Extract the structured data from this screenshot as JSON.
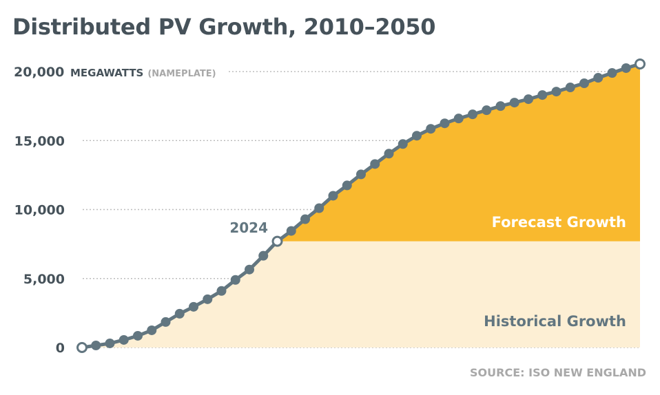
{
  "chart_data": {
    "type": "area",
    "title": "Distributed PV Growth, 2010–2050",
    "ylabel": "MEGAWATTS",
    "ylabel_note": "(NAMEPLATE)",
    "ylim": [
      0,
      20000
    ],
    "xlim": [
      2010,
      2050
    ],
    "yticks": [
      "0",
      "5,000",
      "10,000",
      "15,000",
      "20,000"
    ],
    "ytick_values": [
      0,
      5000,
      10000,
      15000,
      20000
    ],
    "grid": true,
    "annotation": "2024",
    "split_year": 2024,
    "regions": [
      {
        "label": "Historical Growth",
        "color": "#fdefd4"
      },
      {
        "label": "Forecast Growth",
        "color": "#f9b92e"
      }
    ],
    "line_color": "#627680",
    "x": [
      2010,
      2011,
      2012,
      2013,
      2014,
      2015,
      2016,
      2017,
      2018,
      2019,
      2020,
      2021,
      2022,
      2023,
      2024,
      2025,
      2026,
      2027,
      2028,
      2029,
      2030,
      2031,
      2032,
      2033,
      2034,
      2035,
      2036,
      2037,
      2038,
      2039,
      2040,
      2041,
      2042,
      2043,
      2044,
      2045,
      2046,
      2047,
      2048,
      2049,
      2050
    ],
    "values": [
      0,
      150,
      300,
      550,
      850,
      1250,
      1850,
      2450,
      2950,
      3500,
      4100,
      4900,
      5650,
      6650,
      7700,
      8450,
      9300,
      10100,
      11000,
      11750,
      12550,
      13300,
      14050,
      14750,
      15350,
      15850,
      16250,
      16600,
      16900,
      17200,
      17500,
      17750,
      18000,
      18300,
      18550,
      18850,
      19150,
      19550,
      19900,
      20250,
      20550
    ],
    "source": "SOURCE: ISO NEW ENGLAND"
  }
}
